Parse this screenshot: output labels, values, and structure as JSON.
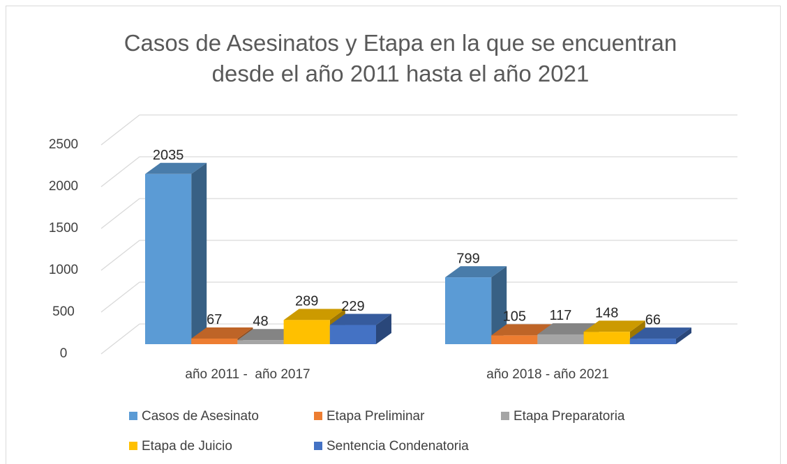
{
  "chart_data": {
    "type": "bar3d",
    "title": "Casos de Asesinatos y Etapa en la que se encuentran desde el año 2011 hasta el año 2021",
    "categories": [
      "año 2011 -  año 2017",
      "año 2018 - año 2021"
    ],
    "series": [
      {
        "name": "Casos de Asesinato",
        "color": "#5b9bd5",
        "values": [
          2035,
          799
        ]
      },
      {
        "name": "Etapa Preliminar",
        "color": "#ed7d31",
        "values": [
          67,
          105
        ]
      },
      {
        "name": "Etapa Preparatoria",
        "color": "#a5a5a5",
        "values": [
          48,
          117
        ]
      },
      {
        "name": "Etapa de Juicio",
        "color": "#ffc000",
        "values": [
          289,
          148
        ]
      },
      {
        "name": "Sentencia Condenatoria",
        "color": "#4472c4",
        "values": [
          229,
          66
        ]
      }
    ],
    "ylim": [
      0,
      2500
    ],
    "yticks": [
      0,
      500,
      1000,
      1500,
      2000,
      2500
    ],
    "grid": true,
    "legend": "bottom"
  }
}
